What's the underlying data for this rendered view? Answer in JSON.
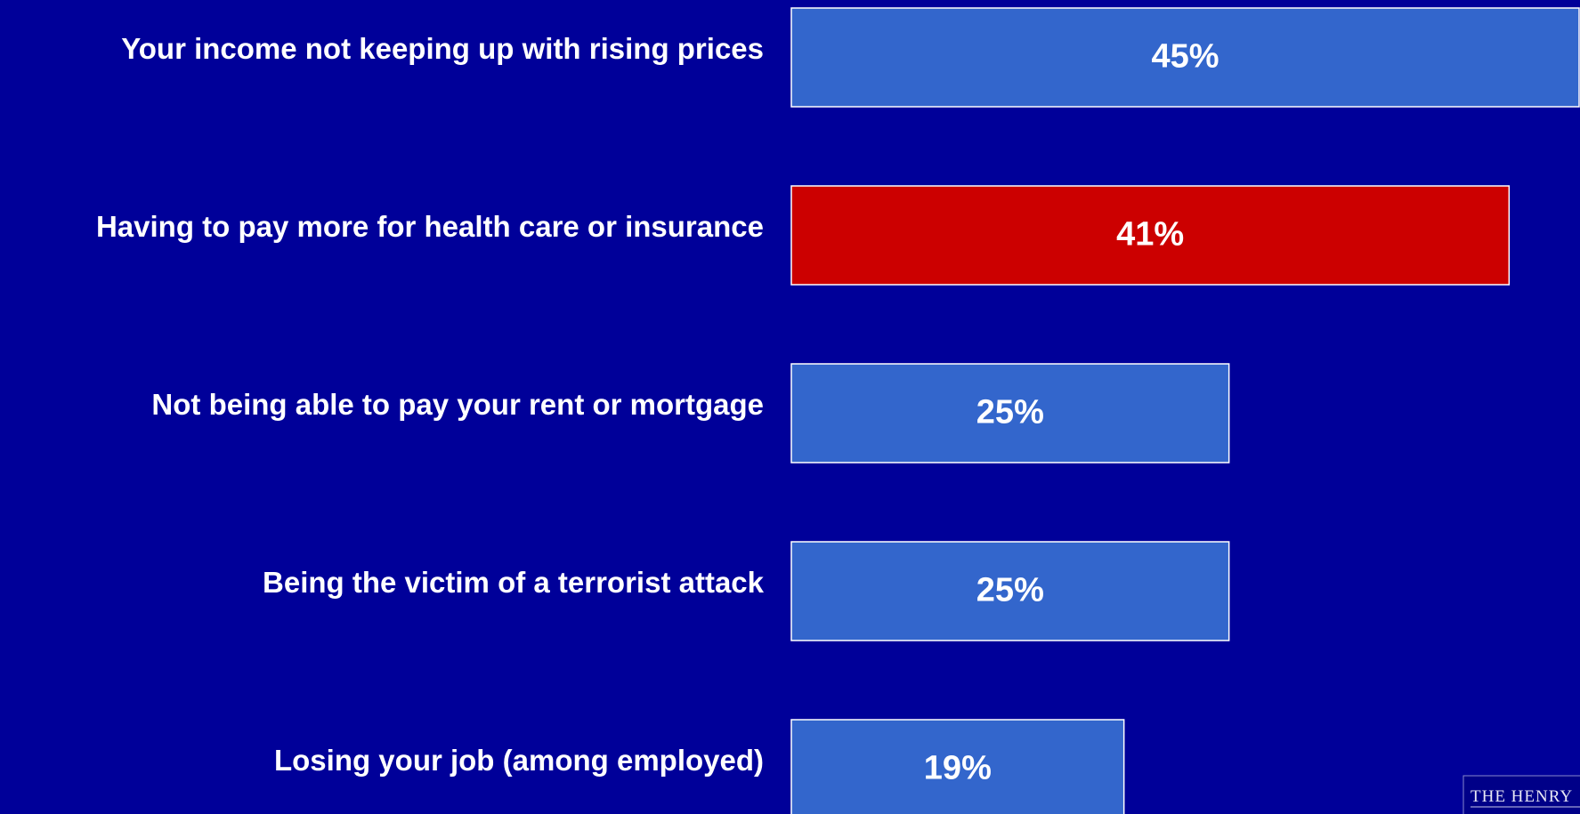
{
  "chart_data": {
    "type": "hbar",
    "categories": [
      "Your income not keeping up with rising prices",
      "Having to pay more for health care or insurance",
      "Not being able to pay your rent or mortgage",
      "Being the victim of a terrorist attack",
      "Losing your job (among employed)"
    ],
    "values": [
      45,
      41,
      25,
      25,
      19
    ],
    "value_labels": [
      "45%",
      "41%",
      "25%",
      "25%",
      "19%"
    ],
    "colors": [
      "#3366cc",
      "#cc0000",
      "#3366cc",
      "#3366cc",
      "#3366cc"
    ],
    "logo_text": "THE HENRY"
  }
}
